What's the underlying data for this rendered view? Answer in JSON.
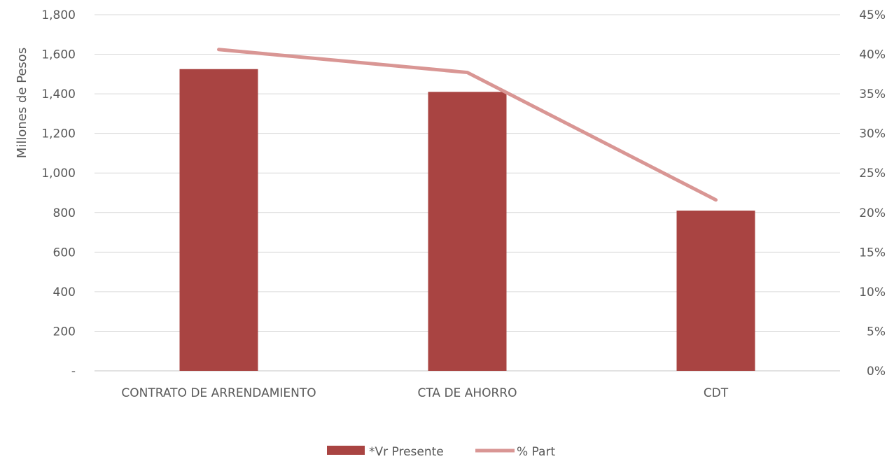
{
  "chart_data": {
    "type": "bar",
    "categories": [
      "CONTRATO DE ARRENDAMIENTO",
      "CTA DE AHORRO",
      "CDT"
    ],
    "ylabel": "Millones de Pesos",
    "ylim": [
      0,
      1800
    ],
    "y2lim": [
      0,
      0.45
    ],
    "yticks": [
      "-",
      "200",
      "400",
      "600",
      "800",
      "1,000",
      "1,200",
      "1,400",
      "1,600",
      "1,800"
    ],
    "y2ticks": [
      "0%",
      "5%",
      "10%",
      "15%",
      "20%",
      "25%",
      "30%",
      "35%",
      "40%",
      "45%"
    ],
    "grid": true,
    "legend_position": "bottom",
    "series": [
      {
        "name": "*Vr Presente",
        "type": "bar",
        "axis": "left",
        "color": "#A94442",
        "values": [
          1525,
          1410,
          810
        ]
      },
      {
        "name": "% Part",
        "type": "line",
        "axis": "right",
        "color": "#D99694",
        "values": [
          0.406,
          0.377,
          0.216
        ]
      }
    ]
  }
}
